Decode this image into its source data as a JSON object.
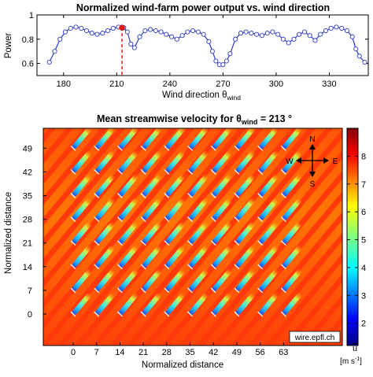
{
  "chart_data": [
    {
      "type": "line",
      "title": "Normalized wind-farm power output vs. wind direction",
      "xlabel": "Wind direction θ",
      "xlabel_sub": "wind",
      "ylabel": "Power",
      "xlim": [
        165,
        352
      ],
      "ylim": [
        0.5,
        1.0
      ],
      "xticks": [
        180,
        210,
        240,
        270,
        300,
        330
      ],
      "yticks": [
        0.6,
        0.8,
        1.0
      ],
      "yticklabels": [
        "0.6",
        "0.8",
        "1"
      ],
      "grid": false,
      "marker": "circle",
      "line_color": "#2b3cc4",
      "highlight": {
        "x": 213,
        "y": 0.895,
        "color": "#e01a1a",
        "dropline": "dashed"
      },
      "series": [
        {
          "x": [
            172,
            175,
            178,
            181,
            184,
            187,
            190,
            193,
            196,
            199,
            202,
            205,
            208,
            211,
            214,
            216,
            218,
            220,
            223,
            226,
            229,
            232,
            235,
            238,
            241,
            244,
            247,
            250,
            253,
            256,
            259,
            262,
            264,
            266,
            268,
            270,
            272,
            274,
            277,
            280,
            283,
            286,
            289,
            292,
            295,
            298,
            301,
            304,
            307,
            310,
            313,
            316,
            319,
            322,
            325,
            328,
            331,
            334,
            337,
            340,
            343,
            345,
            347,
            350
          ],
          "y": [
            0.61,
            0.7,
            0.8,
            0.86,
            0.89,
            0.9,
            0.89,
            0.87,
            0.85,
            0.84,
            0.85,
            0.87,
            0.89,
            0.9,
            0.895,
            0.86,
            0.76,
            0.73,
            0.82,
            0.87,
            0.88,
            0.87,
            0.86,
            0.84,
            0.82,
            0.8,
            0.83,
            0.86,
            0.87,
            0.86,
            0.84,
            0.78,
            0.7,
            0.62,
            0.59,
            0.59,
            0.62,
            0.68,
            0.8,
            0.85,
            0.86,
            0.85,
            0.84,
            0.83,
            0.85,
            0.86,
            0.84,
            0.8,
            0.77,
            0.8,
            0.84,
            0.86,
            0.83,
            0.79,
            0.84,
            0.87,
            0.89,
            0.9,
            0.89,
            0.87,
            0.82,
            0.72,
            0.66,
            0.61
          ]
        }
      ]
    },
    {
      "type": "heatmap",
      "title": "Mean streamwise velocity for θ",
      "title_sub": "wind",
      "title_tail": " = 213 °",
      "xlabel": "Normalized distance",
      "ylabel": "Normalized distance",
      "xticks": [
        0,
        7,
        14,
        21,
        28,
        35,
        42,
        49,
        56,
        63
      ],
      "yticks": [
        0,
        7,
        14,
        21,
        28,
        35,
        42,
        49
      ],
      "turbine_rows": 8,
      "turbine_cols": 10,
      "colorbar": {
        "ticks": [
          2,
          3,
          4,
          5,
          6,
          7,
          8
        ],
        "min": 1.2,
        "max": 9.0,
        "label": "u",
        "unit": "[m s",
        "unit_sup": "-1",
        "unit_tail": "]",
        "colormap": "jet"
      },
      "compass": {
        "n": "N",
        "s": "S",
        "e": "E",
        "w": "W"
      },
      "watermark": "wire.epfl.ch"
    }
  ]
}
